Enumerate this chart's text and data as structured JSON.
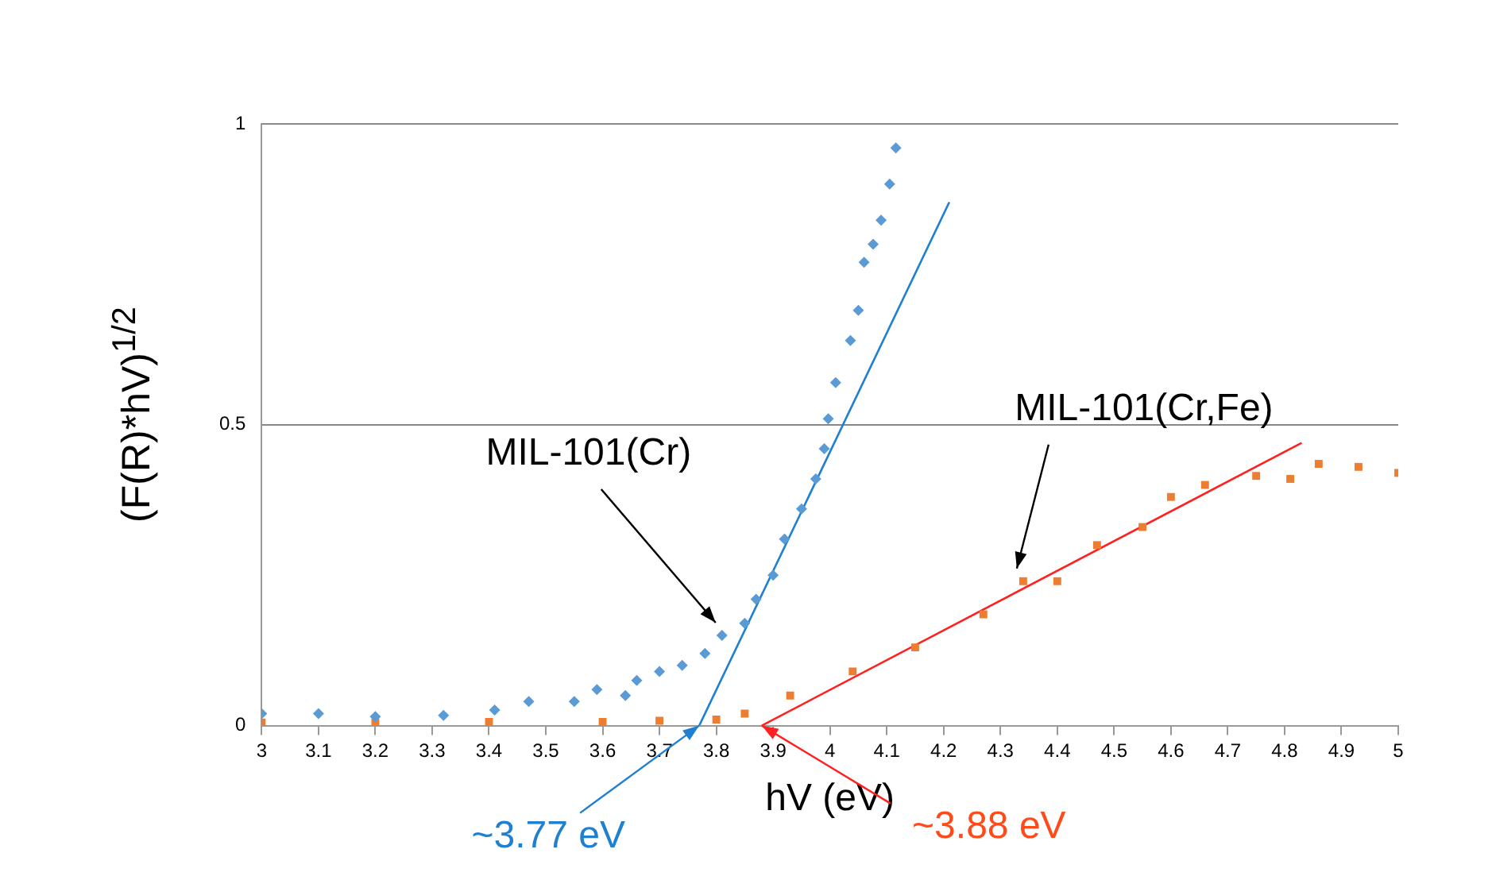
{
  "chart_data": {
    "type": "scatter",
    "xlabel": "hV (eV)",
    "ylabel": "(F(R)*hV)$^{1/2}$",
    "xlim": [
      3,
      5
    ],
    "xticks": [
      3,
      3.1,
      3.2,
      3.3,
      3.4,
      3.5,
      3.6,
      3.7,
      3.8,
      3.9,
      4,
      4.1,
      4.2,
      4.3,
      4.4,
      4.5,
      4.6,
      4.7,
      4.8,
      4.9,
      5
    ],
    "ylim": [
      0,
      1
    ],
    "yticks": [
      0,
      0.5,
      1
    ],
    "grid": "y",
    "legend": false,
    "series": [
      {
        "name": "MIL-101(Cr)",
        "marker": "diamond",
        "color": "#5b9bd5",
        "x": [
          3.0,
          3.1,
          3.2,
          3.32,
          3.41,
          3.47,
          3.55,
          3.59,
          3.64,
          3.66,
          3.7,
          3.74,
          3.78,
          3.81,
          3.85,
          3.87,
          3.9,
          3.92,
          3.95,
          3.975,
          3.99,
          3.997,
          4.01,
          4.036,
          4.05,
          4.06,
          4.076,
          4.09,
          4.105,
          4.116
        ],
        "values": [
          0.02,
          0.02,
          0.015,
          0.017,
          0.026,
          0.04,
          0.04,
          0.06,
          0.05,
          0.075,
          0.09,
          0.1,
          0.12,
          0.15,
          0.17,
          0.21,
          0.25,
          0.31,
          0.36,
          0.41,
          0.46,
          0.51,
          0.57,
          0.64,
          0.69,
          0.77,
          0.8,
          0.84,
          0.9,
          0.96
        ]
      },
      {
        "name": "MIL-101(Cr,Fe)",
        "marker": "square",
        "color": "#ed7d31",
        "x": [
          3.0,
          3.2,
          3.4,
          3.6,
          3.7,
          3.8,
          3.85,
          3.93,
          4.04,
          4.15,
          4.27,
          4.34,
          4.4,
          4.47,
          4.55,
          4.6,
          4.66,
          4.75,
          4.81,
          4.86,
          4.93,
          5.0
        ],
        "values": [
          0.005,
          0.005,
          0.006,
          0.006,
          0.008,
          0.01,
          0.02,
          0.05,
          0.09,
          0.13,
          0.185,
          0.24,
          0.24,
          0.3,
          0.33,
          0.38,
          0.4,
          0.415,
          0.41,
          0.435,
          0.43,
          0.42
        ]
      },
      {
        "type": "line",
        "marker": "none",
        "color": "#1f7fd0",
        "x": [
          3.77,
          4.21
        ],
        "values": [
          0,
          0.87
        ]
      },
      {
        "type": "line",
        "marker": "none",
        "color": "#ff2020",
        "x": [
          3.88,
          4.83
        ],
        "values": [
          0,
          0.47
        ]
      }
    ],
    "annotations": [
      {
        "text": "~3.77 eV",
        "x": 3.77,
        "y": 0
      },
      {
        "text": "~3.88 eV",
        "x": 3.88,
        "y": 0
      }
    ]
  }
}
